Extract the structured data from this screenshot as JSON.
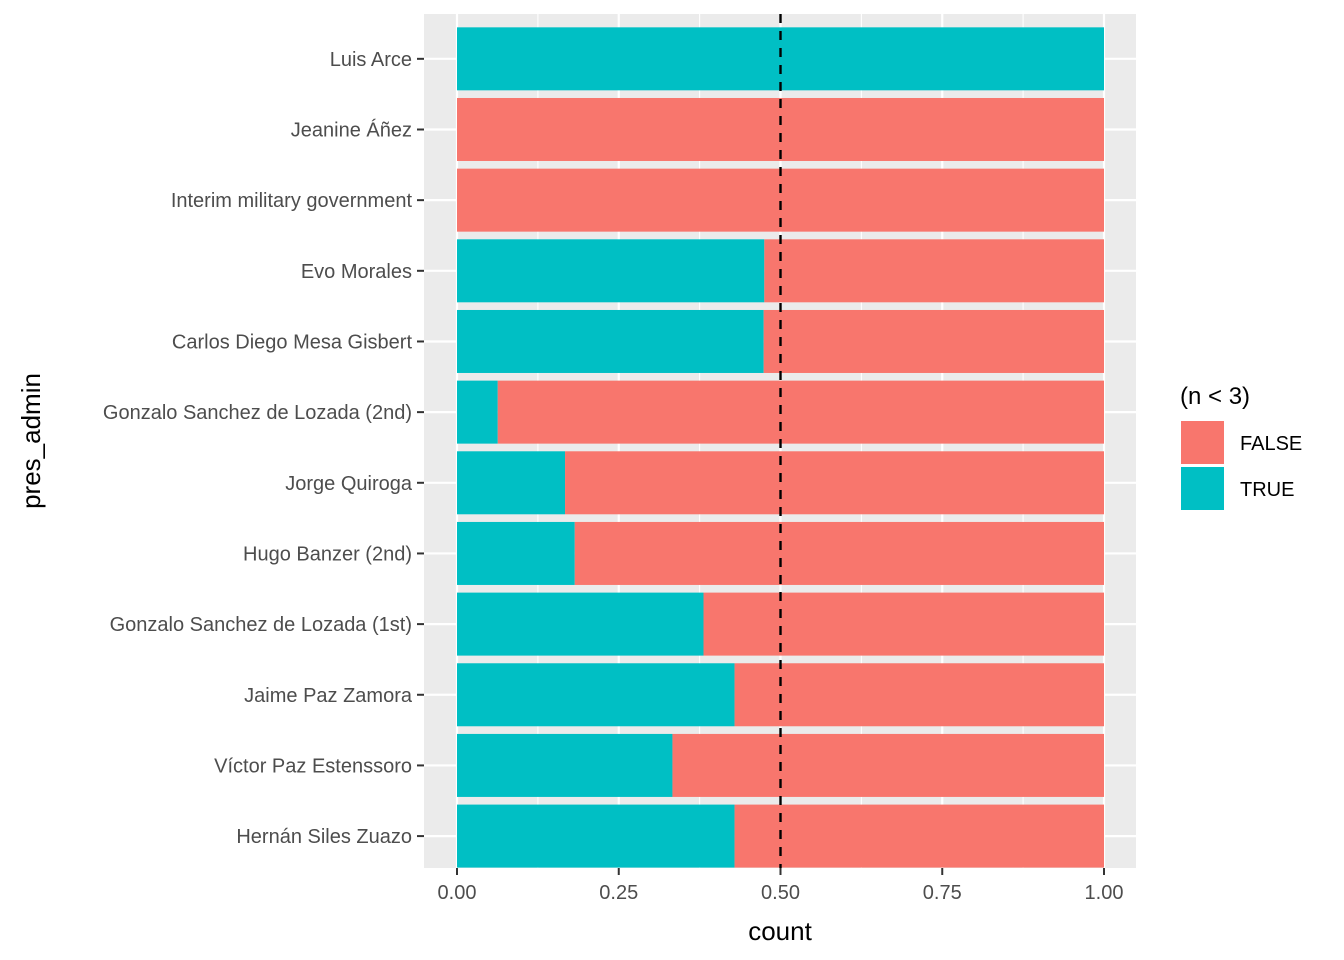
{
  "chart_data": {
    "type": "bar",
    "orientation": "horizontal",
    "stacked": "fill",
    "categories": [
      "Luis Arce",
      "Jeanine Áñez",
      "Interim military government",
      "Evo Morales",
      "Carlos Diego Mesa Gisbert",
      "Gonzalo Sanchez de Lozada (2nd)",
      "Jorge Quiroga",
      "Hugo Banzer (2nd)",
      "Gonzalo Sanchez de Lozada (1st)",
      "Jaime Paz Zamora",
      "Víctor Paz Estenssoro",
      "Hernán Siles Zuazo"
    ],
    "series": [
      {
        "name": "TRUE",
        "values": [
          1.0,
          0.0,
          0.0,
          0.475,
          0.474,
          0.063,
          0.167,
          0.182,
          0.381,
          0.429,
          0.333,
          0.429
        ]
      },
      {
        "name": "FALSE",
        "values": [
          0.0,
          1.0,
          1.0,
          0.525,
          0.526,
          0.937,
          0.833,
          0.818,
          0.619,
          0.571,
          0.667,
          0.571
        ]
      }
    ],
    "xlabel": "count",
    "ylabel": "pres_admin",
    "xlim": [
      0,
      1
    ],
    "x_ticks": [
      "0.00",
      "0.25",
      "0.50",
      "0.75",
      "1.00"
    ],
    "reference_line": {
      "x": 0.5,
      "style": "dashed"
    },
    "grid": true,
    "legend": {
      "title": "(n < 3)",
      "placement": "right",
      "entries": [
        "FALSE",
        "TRUE"
      ]
    },
    "colors": {
      "FALSE": "#F8766D",
      "TRUE": "#00BFC4",
      "panel": "#EBEBEB",
      "grid": "#FFFFFF"
    }
  }
}
